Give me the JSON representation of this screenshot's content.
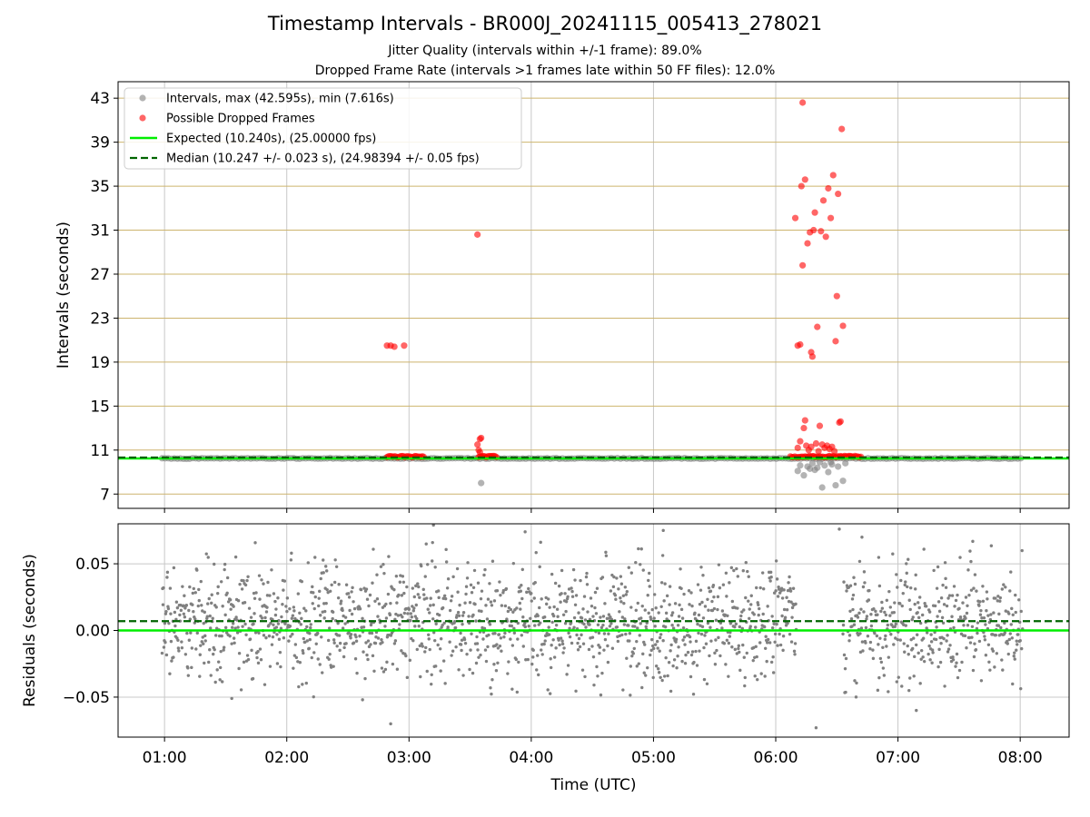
{
  "title": "Timestamp Intervals - BR000J_20241115_005413_278021",
  "subtitle_1": "Jitter Quality (intervals within +/-1 frame): 89.0%",
  "subtitle_2": "Dropped Frame Rate (intervals >1 frames late within 50 FF files): 12.0%",
  "colors": {
    "normal": "#808080",
    "dropped": "#ff0000",
    "expected": "#00ee00",
    "median": "#006400",
    "hgrid_top": "#cdb46e",
    "grid": "#c8c8c8"
  },
  "chart_data": [
    {
      "type": "scatter",
      "ylabel": "Intervals (seconds)",
      "x_range_hours": [
        0.62,
        8.4
      ],
      "ylim": [
        5.7,
        44.5
      ],
      "yticks": [
        7,
        11,
        15,
        19,
        23,
        27,
        31,
        35,
        39,
        43
      ],
      "xticks_hours": [
        1,
        2,
        3,
        4,
        5,
        6,
        7,
        8
      ],
      "grid": "on",
      "legend_placement": "top-left",
      "legend": [
        "Intervals, max (42.595s), min (7.616s)",
        "Possible Dropped Frames",
        "Expected (10.240s), (25.00000 fps)",
        "Median (10.247 +/- 0.023 s), (24.98394 +/- 0.05 fps)"
      ],
      "expected": 10.24,
      "median": 10.247,
      "normal_band": {
        "x_start": 0.98,
        "x_end": 8.02,
        "y": 10.24
      },
      "normal_outliers": [
        {
          "x": 3.59,
          "y": 8.0
        },
        {
          "x": 6.18,
          "y": 9.1
        },
        {
          "x": 6.2,
          "y": 9.6
        },
        {
          "x": 6.23,
          "y": 8.7
        },
        {
          "x": 6.26,
          "y": 9.5
        },
        {
          "x": 6.28,
          "y": 9.3
        },
        {
          "x": 6.3,
          "y": 9.8
        },
        {
          "x": 6.32,
          "y": 9.2
        },
        {
          "x": 6.34,
          "y": 9.4
        },
        {
          "x": 6.36,
          "y": 9.9
        },
        {
          "x": 6.38,
          "y": 7.6
        },
        {
          "x": 6.4,
          "y": 9.6
        },
        {
          "x": 6.43,
          "y": 9.0
        },
        {
          "x": 6.46,
          "y": 9.7
        },
        {
          "x": 6.49,
          "y": 7.8
        },
        {
          "x": 6.51,
          "y": 9.5
        },
        {
          "x": 6.55,
          "y": 8.2
        },
        {
          "x": 6.57,
          "y": 9.8
        },
        {
          "x": 6.45,
          "y": 9.9
        }
      ],
      "dropped_band": [
        {
          "x_start": 2.82,
          "x_end": 3.12,
          "y": 10.4
        },
        {
          "x_start": 3.57,
          "x_end": 3.72,
          "y": 10.4
        },
        {
          "x_start": 6.12,
          "x_end": 6.7,
          "y": 10.4
        }
      ],
      "dropped": [
        {
          "x": 2.82,
          "y": 20.5
        },
        {
          "x": 2.85,
          "y": 20.5
        },
        {
          "x": 2.88,
          "y": 20.4
        },
        {
          "x": 2.96,
          "y": 20.5
        },
        {
          "x": 3.56,
          "y": 30.6
        },
        {
          "x": 3.56,
          "y": 11.5
        },
        {
          "x": 3.57,
          "y": 11.0
        },
        {
          "x": 3.58,
          "y": 12.0
        },
        {
          "x": 3.59,
          "y": 12.1
        },
        {
          "x": 3.58,
          "y": 10.8
        },
        {
          "x": 6.16,
          "y": 32.1
        },
        {
          "x": 6.18,
          "y": 20.5
        },
        {
          "x": 6.2,
          "y": 20.6
        },
        {
          "x": 6.21,
          "y": 35.0
        },
        {
          "x": 6.22,
          "y": 27.8
        },
        {
          "x": 6.22,
          "y": 42.6
        },
        {
          "x": 6.23,
          "y": 13.0
        },
        {
          "x": 6.24,
          "y": 35.6
        },
        {
          "x": 6.24,
          "y": 13.7
        },
        {
          "x": 6.26,
          "y": 29.8
        },
        {
          "x": 6.28,
          "y": 30.8
        },
        {
          "x": 6.29,
          "y": 19.9
        },
        {
          "x": 6.3,
          "y": 19.5
        },
        {
          "x": 6.31,
          "y": 31.0
        },
        {
          "x": 6.32,
          "y": 32.6
        },
        {
          "x": 6.34,
          "y": 22.2
        },
        {
          "x": 6.36,
          "y": 13.2
        },
        {
          "x": 6.37,
          "y": 30.9
        },
        {
          "x": 6.39,
          "y": 33.7
        },
        {
          "x": 6.41,
          "y": 30.4
        },
        {
          "x": 6.43,
          "y": 34.8
        },
        {
          "x": 6.45,
          "y": 32.1
        },
        {
          "x": 6.47,
          "y": 36.0
        },
        {
          "x": 6.49,
          "y": 20.9
        },
        {
          "x": 6.5,
          "y": 25.0
        },
        {
          "x": 6.51,
          "y": 34.3
        },
        {
          "x": 6.52,
          "y": 13.5
        },
        {
          "x": 6.53,
          "y": 13.6
        },
        {
          "x": 6.54,
          "y": 40.2
        },
        {
          "x": 6.55,
          "y": 22.3
        },
        {
          "x": 6.18,
          "y": 11.2
        },
        {
          "x": 6.2,
          "y": 11.8
        },
        {
          "x": 6.25,
          "y": 11.4
        },
        {
          "x": 6.27,
          "y": 11.0
        },
        {
          "x": 6.29,
          "y": 11.3
        },
        {
          "x": 6.33,
          "y": 11.6
        },
        {
          "x": 6.35,
          "y": 10.9
        },
        {
          "x": 6.38,
          "y": 11.5
        },
        {
          "x": 6.4,
          "y": 11.2
        },
        {
          "x": 6.42,
          "y": 11.4
        },
        {
          "x": 6.44,
          "y": 11.1
        },
        {
          "x": 6.46,
          "y": 11.3
        },
        {
          "x": 6.48,
          "y": 10.9
        }
      ]
    },
    {
      "type": "scatter",
      "xlabel": "Time (UTC)",
      "ylabel": "Residuals (seconds)",
      "x_range_hours": [
        0.62,
        8.4
      ],
      "ylim": [
        -0.08,
        0.08
      ],
      "yticks": [
        0.05,
        0.0,
        -0.05
      ],
      "ytick_labels": [
        "0.05",
        "0.00",
        "−0.05"
      ],
      "xtick_labels": [
        "01:00",
        "02:00",
        "03:00",
        "04:00",
        "05:00",
        "06:00",
        "07:00",
        "08:00"
      ],
      "grid": "on",
      "zero_line": 0.0,
      "median_line": 0.007,
      "residual_spread_sd": 0.022,
      "residual_segments": [
        {
          "x_start": 0.98,
          "x_end": 6.17
        },
        {
          "x_start": 6.55,
          "x_end": 8.02
        }
      ],
      "residual_extremes": [
        {
          "x": 3.2,
          "y": 0.079
        },
        {
          "x": 3.95,
          "y": 0.074
        },
        {
          "x": 5.08,
          "y": 0.075
        },
        {
          "x": 6.52,
          "y": 0.076
        },
        {
          "x": 2.85,
          "y": -0.07
        },
        {
          "x": 6.33,
          "y": -0.073
        },
        {
          "x": 7.15,
          "y": -0.06
        },
        {
          "x": 2.62,
          "y": -0.052
        },
        {
          "x": 1.55,
          "y": -0.051
        }
      ]
    }
  ]
}
